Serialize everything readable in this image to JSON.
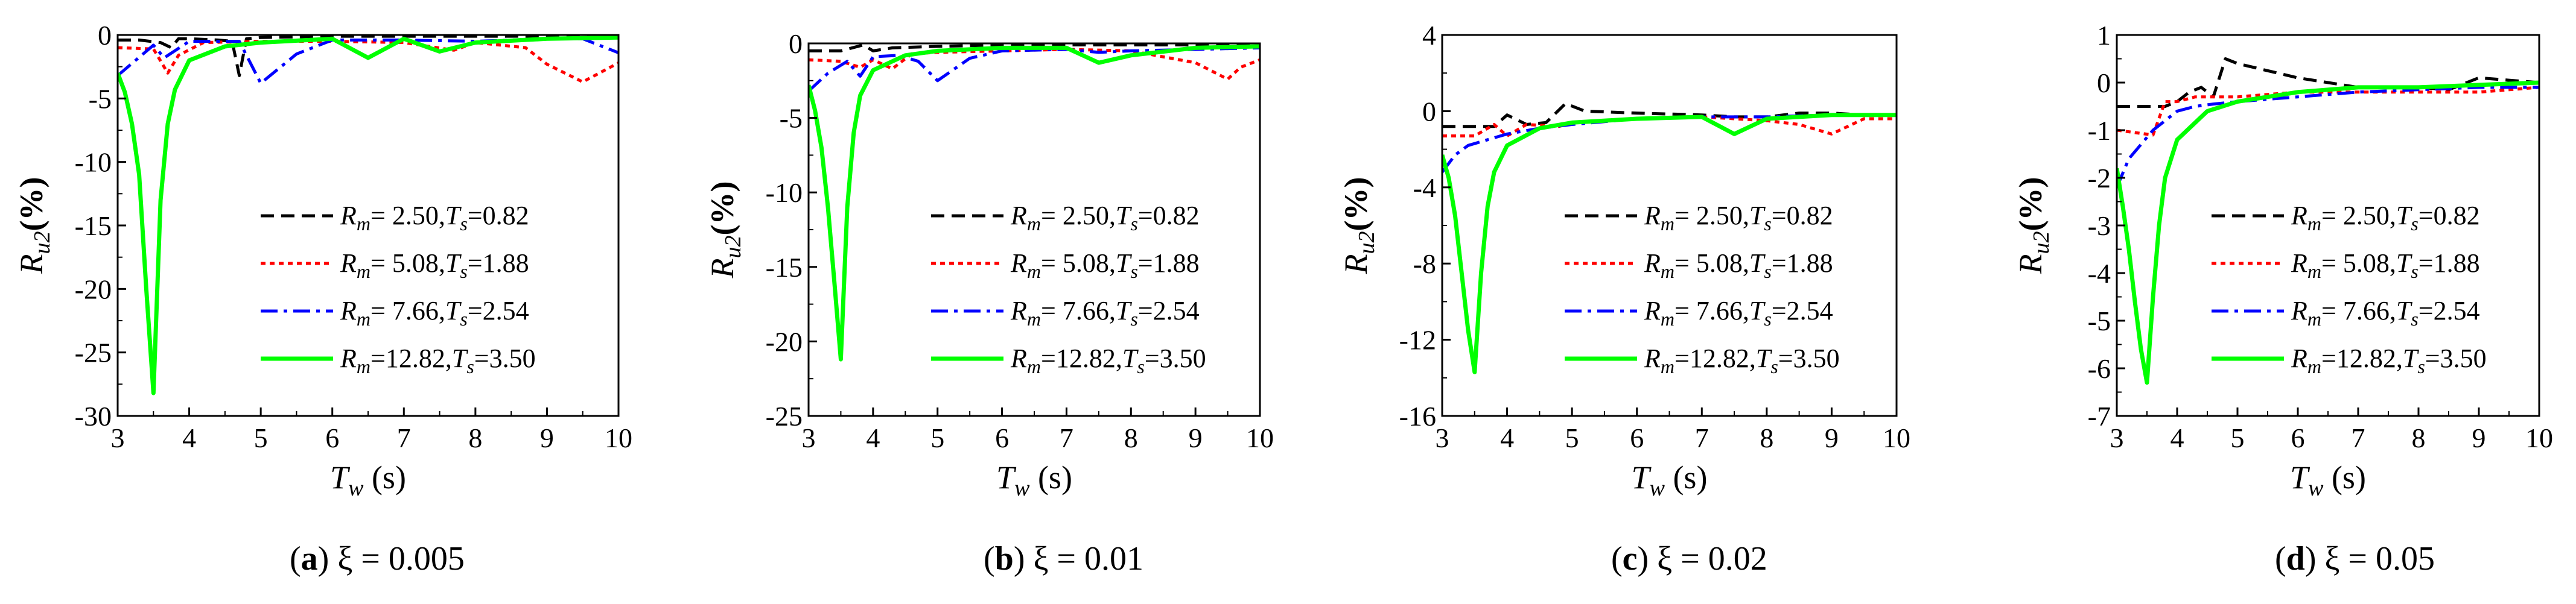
{
  "figure": {
    "legend_labels": [
      {
        "var": "R",
        "sub": "m",
        "eq": "=  2.50,",
        "var2": "T",
        "sub2": "s",
        "eq2": "=0.82"
      },
      {
        "var": "R",
        "sub": "m",
        "eq": "=  5.08,",
        "var2": "T",
        "sub2": "s",
        "eq2": "=1.88"
      },
      {
        "var": "R",
        "sub": "m",
        "eq": "=  7.66,",
        "var2": "T",
        "sub2": "s",
        "eq2": "=2.54"
      },
      {
        "var": "R",
        "sub": "m",
        "eq": "=12.82,",
        "var2": "T",
        "sub2": "s",
        "eq2": "=3.50"
      }
    ],
    "ylabel": {
      "var": "R",
      "sub": "u2",
      "unit": "(%)"
    },
    "xlabel": {
      "var": "T",
      "sub": "w",
      "unit": " (s)"
    }
  },
  "colors": {
    "s1": "#000000",
    "s2": "#ff0000",
    "s3": "#0000ff",
    "s4": "#00ff00",
    "axis": "#000000"
  },
  "chart_data": [
    {
      "type": "line",
      "caption": {
        "letter": "(a)",
        "text": " ξ = 0.005"
      },
      "xlim": [
        3,
        10
      ],
      "ylim": [
        -30,
        0
      ],
      "xticks": [
        3,
        4,
        5,
        6,
        7,
        8,
        9,
        10
      ],
      "yticks": [
        0,
        -5,
        -10,
        -15,
        -20,
        -25,
        -30
      ],
      "series": [
        {
          "name": "Rm=2.50,Ts=0.82",
          "x": [
            3,
            3.3,
            3.6,
            3.75,
            3.85,
            4.0,
            4.4,
            4.6,
            4.7,
            4.8,
            5.0,
            6,
            7,
            8,
            9,
            10
          ],
          "y": [
            -0.4,
            -0.4,
            -0.6,
            -1.0,
            -0.3,
            -0.3,
            -0.4,
            -0.5,
            -3.2,
            -0.3,
            -0.2,
            -0.1,
            -0.1,
            -0.1,
            -0.1,
            -0.1
          ]
        },
        {
          "name": "Rm=5.08,Ts=1.88",
          "x": [
            3,
            3.5,
            3.7,
            3.85,
            4.2,
            5,
            6,
            7,
            7.7,
            8,
            8.7,
            9,
            9.5,
            10
          ],
          "y": [
            -1.0,
            -1.1,
            -3.0,
            -1.6,
            -0.6,
            -0.5,
            -0.5,
            -0.6,
            -1.2,
            -0.6,
            -1.0,
            -2.3,
            -3.7,
            -2.2
          ]
        },
        {
          "name": "Rm=7.66,Ts=2.54",
          "x": [
            3,
            3.5,
            3.65,
            4.0,
            4.7,
            5.0,
            5.5,
            6,
            7,
            8,
            9,
            9.5,
            10
          ],
          "y": [
            -3.2,
            -0.8,
            -1.8,
            -0.5,
            -0.5,
            -3.8,
            -1.5,
            -0.4,
            -0.4,
            -0.5,
            -0.3,
            -0.3,
            -1.4
          ]
        },
        {
          "name": "Rm=12.82,Ts=3.50",
          "x": [
            3,
            3.1,
            3.2,
            3.3,
            3.4,
            3.5,
            3.6,
            3.7,
            3.8,
            4.0,
            4.5,
            5,
            6,
            6.5,
            7,
            7.5,
            8,
            9,
            10
          ],
          "y": [
            -3.0,
            -4.5,
            -7.0,
            -11.0,
            -20.0,
            -28.2,
            -13.0,
            -7.0,
            -4.3,
            -2.0,
            -0.9,
            -0.6,
            -0.3,
            -1.8,
            -0.3,
            -1.3,
            -0.6,
            -0.3,
            -0.2
          ]
        }
      ]
    },
    {
      "type": "line",
      "caption": {
        "letter": "(b)",
        "text": " ξ = 0.01"
      },
      "xlim": [
        3,
        10
      ],
      "ylim": [
        -25,
        0
      ],
      "xticks": [
        3,
        4,
        5,
        6,
        7,
        8,
        9,
        10
      ],
      "yticks": [
        0,
        -5,
        -10,
        -15,
        -20,
        -25
      ],
      "series": [
        {
          "name": "Rm=2.50,Ts=0.82",
          "x": [
            3,
            3.5,
            3.85,
            4.0,
            4.3,
            5,
            6,
            7,
            8,
            9,
            10
          ],
          "y": [
            -0.5,
            -0.5,
            -0.1,
            -0.5,
            -0.3,
            -0.2,
            -0.1,
            -0.1,
            -0.1,
            -0.1,
            -0.1
          ]
        },
        {
          "name": "Rm=5.08,Ts=1.88",
          "x": [
            3,
            3.5,
            3.8,
            4.0,
            4.3,
            4.6,
            5,
            6,
            7,
            8,
            9,
            9.5,
            9.7,
            10
          ],
          "y": [
            -1.1,
            -1.2,
            -1.6,
            -1.1,
            -1.7,
            -0.7,
            -0.6,
            -0.5,
            -0.4,
            -0.5,
            -1.3,
            -2.4,
            -1.6,
            -1.1
          ]
        },
        {
          "name": "Rm=7.66,Ts=2.54",
          "x": [
            3,
            3.3,
            3.6,
            3.8,
            4.0,
            4.4,
            4.7,
            5.0,
            5.5,
            6,
            7,
            7.5,
            8,
            9,
            10
          ],
          "y": [
            -3.2,
            -2.0,
            -1.2,
            -2.2,
            -0.9,
            -0.8,
            -1.2,
            -2.5,
            -1.0,
            -0.5,
            -0.4,
            -0.6,
            -0.5,
            -0.4,
            -0.3
          ]
        },
        {
          "name": "Rm=12.82,Ts=3.50",
          "x": [
            3,
            3.1,
            3.2,
            3.3,
            3.4,
            3.5,
            3.6,
            3.7,
            3.8,
            4.0,
            4.5,
            5,
            6,
            7,
            7.5,
            8,
            9,
            10
          ],
          "y": [
            -2.8,
            -4.5,
            -7.0,
            -11.0,
            -16.0,
            -21.2,
            -11.0,
            -6.0,
            -3.5,
            -1.8,
            -0.8,
            -0.5,
            -0.3,
            -0.3,
            -1.3,
            -0.8,
            -0.3,
            -0.2
          ]
        }
      ]
    },
    {
      "type": "line",
      "caption": {
        "letter": "(c)",
        "text": " ξ = 0.02"
      },
      "xlim": [
        3,
        10
      ],
      "ylim": [
        -16,
        4
      ],
      "xticks": [
        3,
        4,
        5,
        6,
        7,
        8,
        9,
        10
      ],
      "yticks": [
        4,
        0,
        -4,
        -8,
        -12,
        -16
      ],
      "series": [
        {
          "name": "Rm=2.50,Ts=0.82",
          "x": [
            3,
            3.8,
            4.0,
            4.3,
            4.6,
            4.9,
            5.2,
            6,
            7,
            7.5,
            8,
            8.5,
            9,
            9.5,
            10
          ],
          "y": [
            -0.8,
            -0.8,
            -0.2,
            -0.7,
            -0.6,
            0.4,
            0.0,
            -0.1,
            -0.2,
            -0.3,
            -0.3,
            -0.1,
            -0.1,
            -0.2,
            -0.2
          ]
        },
        {
          "name": "Rm=5.08,Ts=1.88",
          "x": [
            3,
            3.5,
            3.8,
            4.0,
            4.3,
            4.8,
            5,
            6,
            7,
            7.5,
            8,
            8.5,
            9,
            9.5,
            10
          ],
          "y": [
            -1.3,
            -1.3,
            -0.7,
            -1.3,
            -0.7,
            -0.8,
            -0.6,
            -0.4,
            -0.3,
            -0.4,
            -0.5,
            -0.7,
            -1.2,
            -0.4,
            -0.4
          ]
        },
        {
          "name": "Rm=7.66,Ts=2.54",
          "x": [
            3,
            3.2,
            3.4,
            3.7,
            4.0,
            4.5,
            5,
            6,
            7,
            8,
            9,
            10
          ],
          "y": [
            -3.2,
            -2.3,
            -1.8,
            -1.5,
            -1.2,
            -0.9,
            -0.7,
            -0.4,
            -0.3,
            -0.3,
            -0.2,
            -0.2
          ]
        },
        {
          "name": "Rm=12.82,Ts=3.50",
          "x": [
            3,
            3.1,
            3.2,
            3.3,
            3.4,
            3.5,
            3.6,
            3.7,
            3.8,
            4.0,
            4.5,
            5,
            6,
            7,
            7.5,
            8,
            9,
            10
          ],
          "y": [
            -2.3,
            -3.5,
            -5.5,
            -8.5,
            -11.5,
            -13.7,
            -8.5,
            -5.0,
            -3.2,
            -1.8,
            -0.9,
            -0.6,
            -0.4,
            -0.3,
            -1.2,
            -0.4,
            -0.2,
            -0.2
          ]
        }
      ]
    },
    {
      "type": "line",
      "caption": {
        "letter": "(d)",
        "text": " ξ = 0.05"
      },
      "xlim": [
        3,
        10
      ],
      "ylim": [
        -7,
        1
      ],
      "xticks": [
        3,
        4,
        5,
        6,
        7,
        8,
        9,
        10
      ],
      "yticks": [
        1,
        0,
        -1,
        -2,
        -3,
        -4,
        -5,
        -6,
        -7
      ],
      "series": [
        {
          "name": "Rm=2.50,Ts=0.82",
          "x": [
            3,
            3.8,
            4.0,
            4.2,
            4.4,
            4.6,
            4.8,
            5.0,
            5.5,
            6,
            7,
            8,
            8.5,
            9,
            9.5,
            10
          ],
          "y": [
            -0.5,
            -0.5,
            -0.4,
            -0.2,
            -0.1,
            -0.3,
            0.5,
            0.4,
            0.25,
            0.1,
            -0.1,
            -0.1,
            -0.15,
            0.1,
            0.05,
            0.0
          ]
        },
        {
          "name": "Rm=5.08,Ts=1.88",
          "x": [
            3,
            3.6,
            3.8,
            4.0,
            4.3,
            5,
            6,
            7,
            8,
            9,
            10
          ],
          "y": [
            -1.0,
            -1.1,
            -0.4,
            -0.4,
            -0.3,
            -0.3,
            -0.2,
            -0.2,
            -0.2,
            -0.2,
            -0.1
          ]
        },
        {
          "name": "Rm=7.66,Ts=2.54",
          "x": [
            3,
            3.2,
            3.4,
            3.6,
            3.8,
            4.0,
            4.3,
            4.6,
            5,
            6,
            7,
            8,
            9,
            10
          ],
          "y": [
            -2.2,
            -1.6,
            -1.3,
            -1.0,
            -0.8,
            -0.6,
            -0.5,
            -0.45,
            -0.4,
            -0.3,
            -0.2,
            -0.15,
            -0.1,
            -0.1
          ]
        },
        {
          "name": "Rm=12.82,Ts=3.50",
          "x": [
            3,
            3.1,
            3.2,
            3.3,
            3.4,
            3.5,
            3.6,
            3.7,
            3.8,
            4.0,
            4.5,
            5,
            6,
            7,
            8,
            9,
            10
          ],
          "y": [
            -1.8,
            -2.6,
            -3.5,
            -4.6,
            -5.6,
            -6.3,
            -4.5,
            -3.0,
            -2.0,
            -1.2,
            -0.6,
            -0.4,
            -0.2,
            -0.1,
            -0.1,
            -0.05,
            0.0
          ]
        }
      ]
    }
  ]
}
